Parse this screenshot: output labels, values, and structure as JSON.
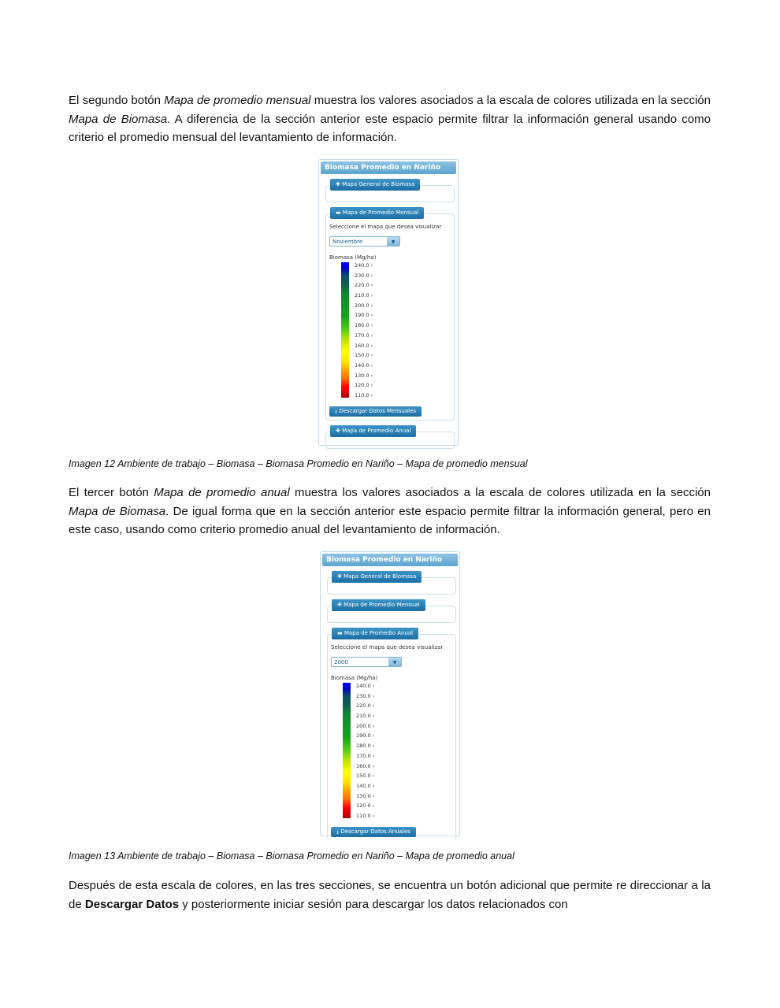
{
  "paragraph1": {
    "p1": "El segundo botón ",
    "i1": "Mapa de promedio mensual",
    "p2": " muestra los valores asociados a la escala de colores utilizada en la sección ",
    "i2": "Mapa de Biomasa.",
    "p3": " A diferencia de la sección anterior este espacio permite filtrar la información general usando como criterio el promedio mensual del levantamiento de información."
  },
  "caption1": "Imagen 12 Ambiente de trabajo – Biomasa – Biomasa Promedio en Nariño – Mapa de promedio mensual",
  "paragraph2": {
    "p1": "El tercer botón ",
    "i1": "Mapa de promedio anual",
    "p2": " muestra los valores asociados a la escala de colores utilizada en la sección ",
    "i2": "Mapa de Biomasa",
    "p3": ". De igual forma que en la sección anterior este espacio permite filtrar la información general, pero en este caso, usando como criterio promedio anual del levantamiento de información."
  },
  "caption2": "Imagen 13 Ambiente de trabajo – Biomasa – Biomasa Promedio en Nariño – Mapa de promedio anual",
  "paragraph3": {
    "p1": "Después de esta escala de colores, en las tres secciones, se encuentra un botón adicional que permite re direccionar a la de ",
    "b1": "Descargar Datos",
    "p2": " y posteriormente iniciar sesión para descargar los datos relacionados con"
  },
  "panel": {
    "title": "Biomasa Promedio en Nariño",
    "btn_general": "Mapa General de Biomasa",
    "btn_mensual": "Mapa de Promedio Mensual",
    "btn_anual": "Mapa de Promedio Anual",
    "select_prompt": "Seleccione el mapa que desea visualizar",
    "legend_title": "Biomasa (Mg/ha)",
    "scale": [
      "240.0",
      "230.0",
      "220.0",
      "210.0",
      "200.0",
      "190.0",
      "180.0",
      "170.0",
      "160.0",
      "150.0",
      "140.0",
      "130.0",
      "120.0",
      "110.0"
    ]
  },
  "panel1": {
    "selected": "Noviembre",
    "download": "Descargar Datos Mensuales"
  },
  "panel2": {
    "selected": "2000",
    "download": "Descargar Datos Anuales"
  }
}
